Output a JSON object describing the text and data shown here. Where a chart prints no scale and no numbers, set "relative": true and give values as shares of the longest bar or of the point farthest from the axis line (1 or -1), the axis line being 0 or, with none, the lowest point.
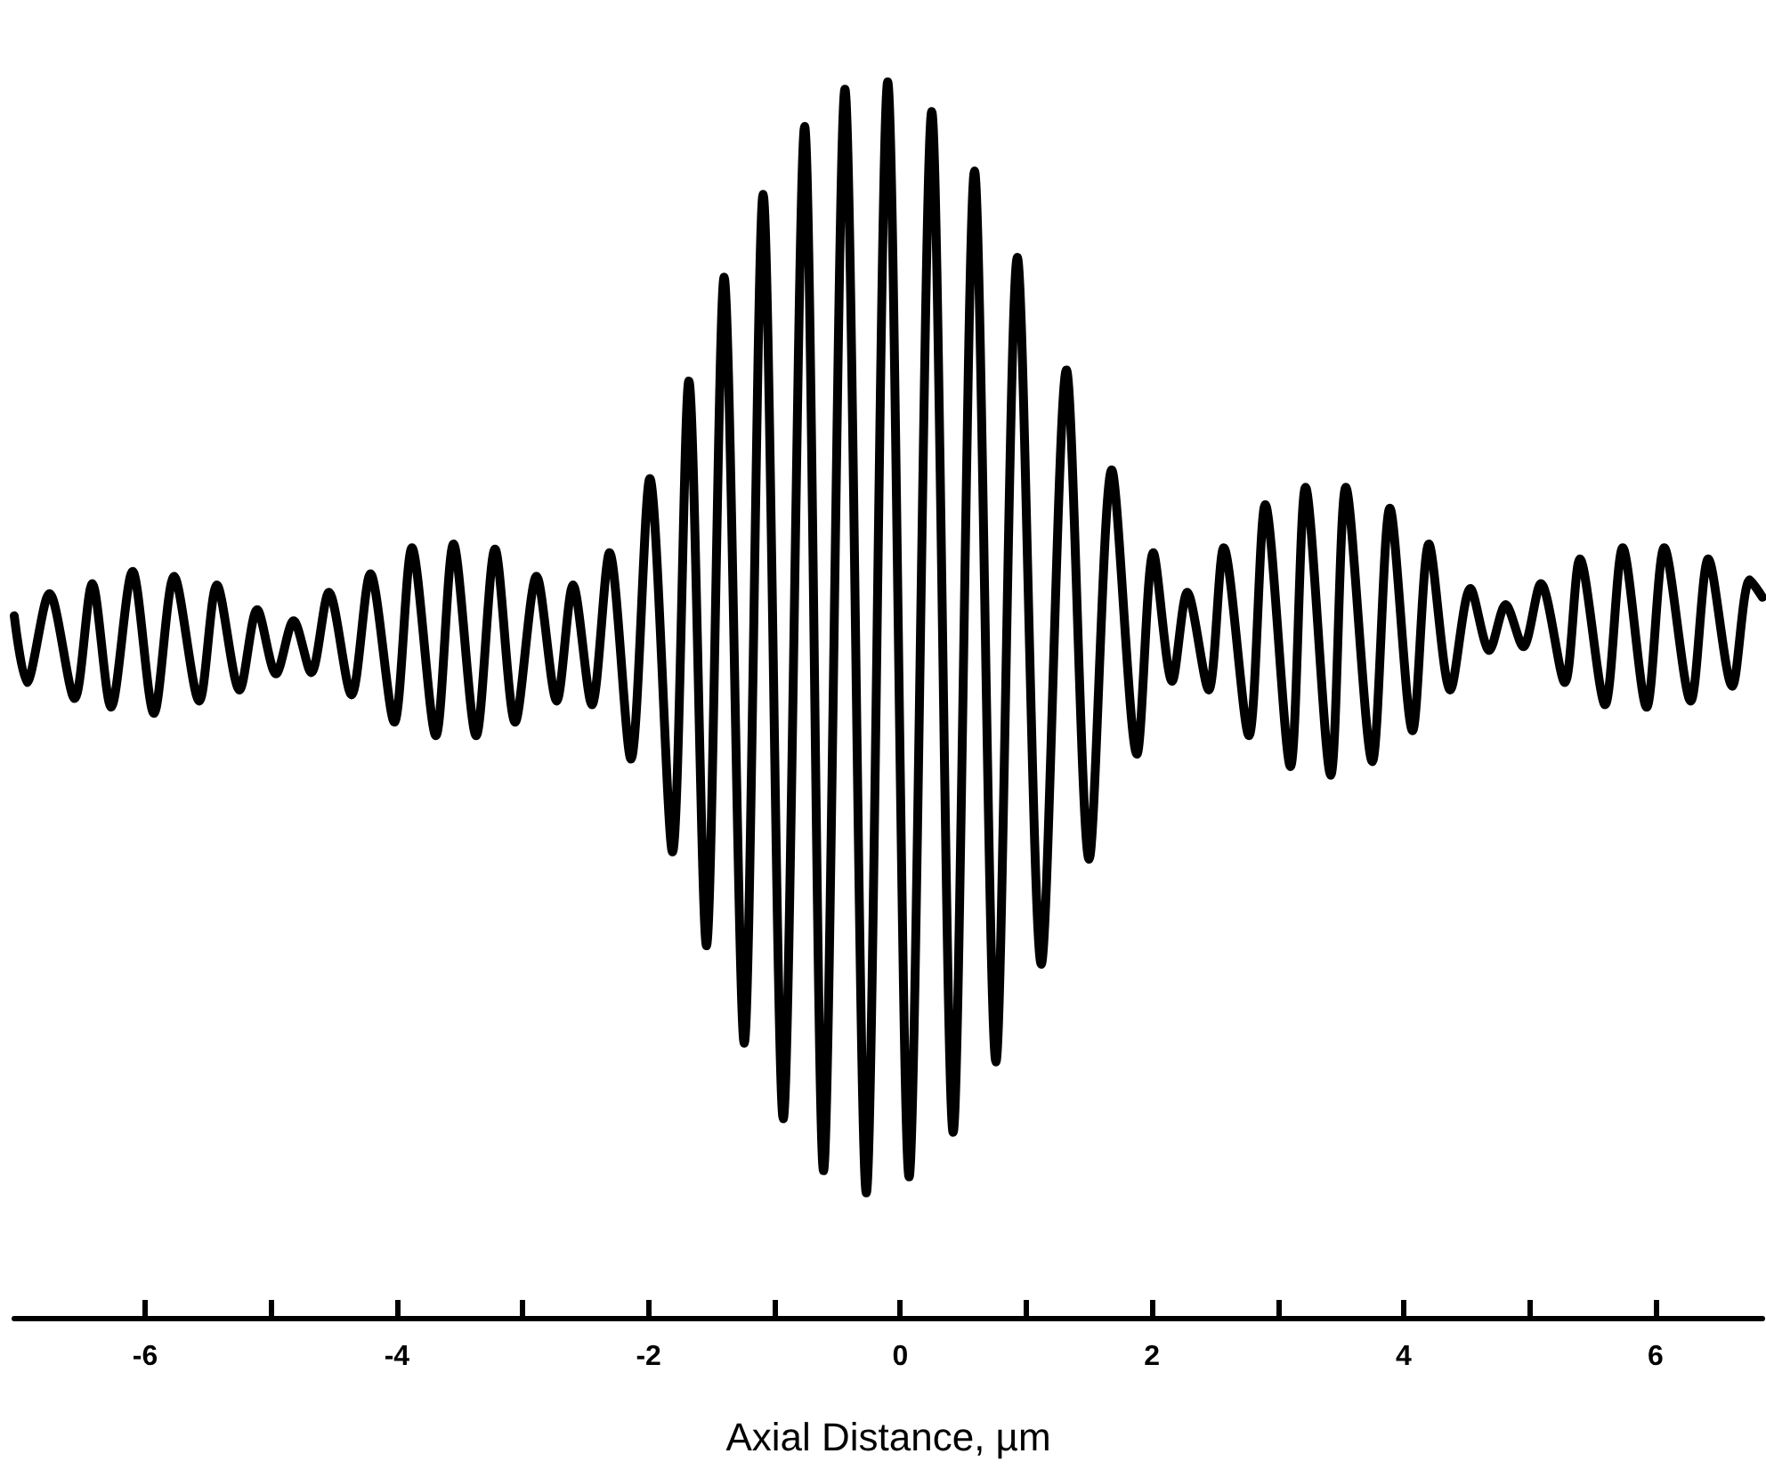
{
  "chart_data": {
    "type": "line",
    "relative": true,
    "xlabel": "Axial Distance, µm",
    "xlim": [
      -7.04,
      6.85
    ],
    "xticks": [
      -6,
      {
        "value": -5,
        "label": null
      },
      -4,
      {
        "value": -3,
        "label": null
      },
      -2,
      {
        "value": -1,
        "label": null
      },
      0,
      {
        "value": 1,
        "label": null
      },
      2,
      {
        "value": 3,
        "label": null
      },
      4,
      {
        "value": 5,
        "label": null
      },
      6
    ],
    "grid": false,
    "marker": "none",
    "line_style": "solid",
    "series": [
      {
        "color": "#000000",
        "x": [
          -7.04,
          -6.94,
          -6.76,
          -6.56,
          -6.42,
          -6.27,
          -6.1,
          -5.93,
          -5.77,
          -5.57,
          -5.43,
          -5.25,
          -5.11,
          -4.96,
          -4.82,
          -4.68,
          -4.54,
          -4.36,
          -4.21,
          -4.02,
          -3.88,
          -3.69,
          -3.55,
          -3.37,
          -3.22,
          -3.06,
          -2.89,
          -2.73,
          -2.6,
          -2.45,
          -2.31,
          -2.14,
          -1.99,
          -1.81,
          -1.68,
          -1.54,
          -1.4,
          -1.24,
          -1.09,
          -0.93,
          -0.76,
          -0.61,
          -0.44,
          -0.27,
          -0.1,
          0.07,
          0.25,
          0.42,
          0.59,
          0.76,
          0.93,
          1.12,
          1.32,
          1.5,
          1.68,
          1.88,
          2.01,
          2.16,
          2.28,
          2.45,
          2.57,
          2.77,
          2.9,
          3.1,
          3.22,
          3.42,
          3.54,
          3.75,
          3.89,
          4.07,
          4.2,
          4.37,
          4.53,
          4.68,
          4.81,
          4.95,
          5.09,
          5.28,
          5.4,
          5.6,
          5.74,
          5.93,
          6.07,
          6.28,
          6.42,
          6.61,
          6.75,
          6.85
        ],
        "values": [
          0.568,
          0.514,
          0.586,
          0.501,
          0.594,
          0.494,
          0.604,
          0.489,
          0.6,
          0.499,
          0.593,
          0.508,
          0.573,
          0.521,
          0.564,
          0.522,
          0.587,
          0.504,
          0.602,
          0.482,
          0.623,
          0.471,
          0.626,
          0.471,
          0.622,
          0.482,
          0.6,
          0.499,
          0.593,
          0.496,
          0.619,
          0.452,
          0.679,
          0.377,
          0.758,
          0.301,
          0.842,
          0.222,
          0.909,
          0.161,
          0.964,
          0.119,
          0.994,
          0.101,
          1,
          0.114,
          0.976,
          0.15,
          0.928,
          0.207,
          0.858,
          0.286,
          0.767,
          0.371,
          0.686,
          0.456,
          0.619,
          0.515,
          0.587,
          0.508,
          0.623,
          0.471,
          0.658,
          0.446,
          0.672,
          0.439,
          0.672,
          0.45,
          0.655,
          0.475,
          0.626,
          0.508,
          0.59,
          0.54,
          0.577,
          0.543,
          0.594,
          0.514,
          0.614,
          0.496,
          0.623,
          0.494,
          0.623,
          0.499,
          0.614,
          0.511,
          0.597,
          0.583
        ]
      }
    ]
  }
}
